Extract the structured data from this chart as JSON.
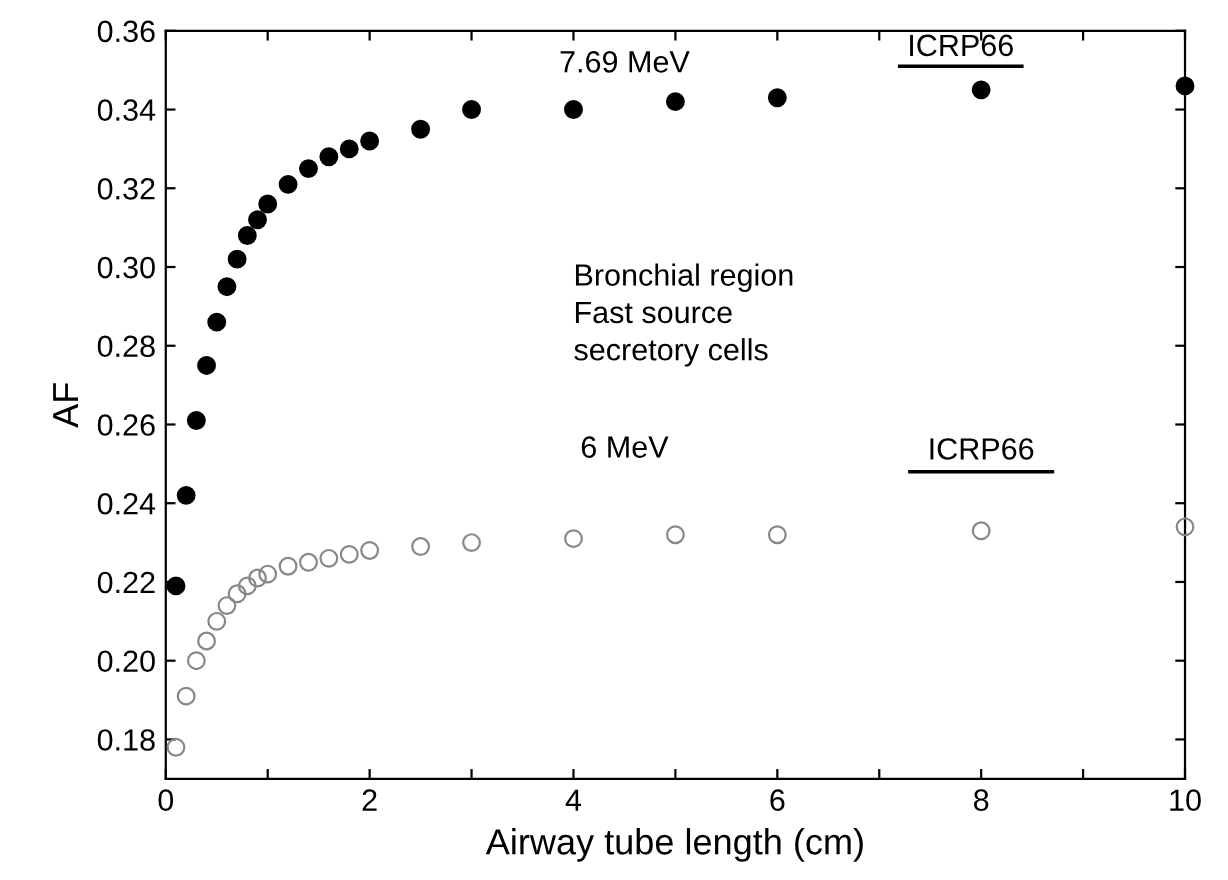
{
  "chart_data": {
    "type": "scatter",
    "xlabel": "Airway tube length (cm)",
    "ylabel": "AF",
    "xlim": [
      0,
      10
    ],
    "ylim": [
      0.17,
      0.36
    ],
    "xticks": [
      0,
      {
        "value": 1,
        "label": null
      },
      2,
      {
        "value": 3,
        "label": null
      },
      4,
      {
        "value": 5,
        "label": null
      },
      6,
      {
        "value": 7,
        "label": null
      },
      8,
      {
        "value": 9,
        "label": null
      },
      10
    ],
    "yticks": [
      {
        "value": 0.18,
        "label": "0.18"
      },
      {
        "value": 0.2,
        "label": "0.20"
      },
      {
        "value": 0.22,
        "label": "0.22"
      },
      {
        "value": 0.24,
        "label": "0.24"
      },
      {
        "value": 0.26,
        "label": "0.26"
      },
      {
        "value": 0.28,
        "label": "0.28"
      },
      {
        "value": 0.3,
        "label": "0.30"
      },
      {
        "value": 0.32,
        "label": "0.32"
      },
      {
        "value": 0.34,
        "label": "0.34"
      },
      {
        "value": 0.36,
        "label": "0.36"
      }
    ],
    "grid": false,
    "legend": false,
    "series": [
      {
        "marker": "circle",
        "color": "#000000",
        "x": [
          0.1,
          0.2,
          0.3,
          0.4,
          0.5,
          0.6,
          0.7,
          0.8,
          0.9,
          1.0,
          1.2,
          1.4,
          1.6,
          1.8,
          2,
          2.5,
          3,
          4,
          5,
          6,
          8,
          10
        ],
        "values": [
          0.219,
          0.242,
          0.261,
          0.275,
          0.286,
          0.295,
          0.302,
          0.308,
          0.312,
          0.316,
          0.321,
          0.325,
          0.328,
          0.33,
          0.332,
          0.335,
          0.34,
          0.34,
          0.342,
          0.343,
          0.345,
          0.346
        ]
      },
      {
        "marker": "circle",
        "color": "#888888",
        "x": [
          0.1,
          0.2,
          0.3,
          0.4,
          0.5,
          0.6,
          0.7,
          0.8,
          0.9,
          1.0,
          1.2,
          1.4,
          1.6,
          1.8,
          2,
          2.5,
          3,
          4,
          5,
          6,
          8,
          10
        ],
        "values": [
          0.178,
          0.191,
          0.2,
          0.205,
          0.21,
          0.214,
          0.217,
          0.219,
          0.221,
          0.222,
          0.224,
          0.225,
          0.226,
          0.227,
          0.228,
          0.229,
          0.23,
          0.231,
          0.232,
          0.232,
          0.233,
          0.234
        ]
      },
      {
        "type": "line",
        "line_style": "solid",
        "color": "#000000",
        "x": [
          7.2,
          8.4
        ],
        "values": [
          0.351,
          0.351
        ]
      },
      {
        "type": "line",
        "line_style": "solid",
        "color": "#000000",
        "x": [
          7.3,
          8.7
        ],
        "values": [
          0.248,
          0.248
        ]
      }
    ],
    "annotations": [
      "7.69 MeV",
      "6 MeV",
      {
        "text": "ICRP66",
        "x": 7.8,
        "y": 0.352
      },
      {
        "text": "ICRP66",
        "x": 8.0,
        "y": 0.2495
      },
      "Bronchial region\nFast source\nsecretory cells"
    ]
  }
}
